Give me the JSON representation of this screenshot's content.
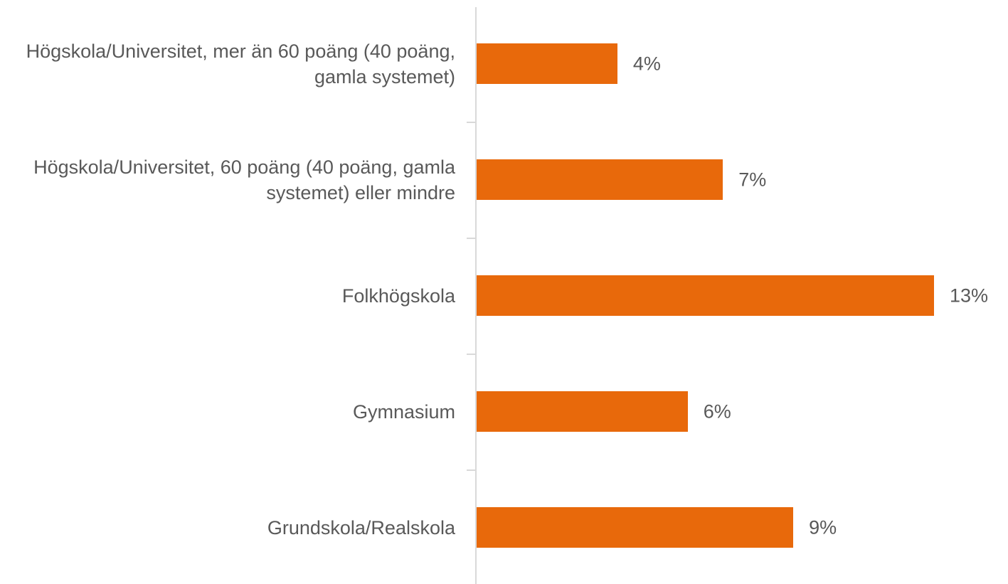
{
  "chart_data": {
    "type": "bar",
    "orientation": "horizontal",
    "categories": [
      "Högskola/Universitet, mer än 60 poäng (40 poäng, gamla systemet)",
      "Högskola/Universitet, 60 poäng (40 poäng, gamla systemet) eller mindre",
      "Folkhögskola",
      "Gymnasium",
      "Grundskola/Realskola"
    ],
    "values": [
      4,
      7,
      13,
      6,
      9
    ],
    "value_labels": [
      "4%",
      "7%",
      "13%",
      "6%",
      "9%"
    ],
    "color": "#e8690b"
  }
}
